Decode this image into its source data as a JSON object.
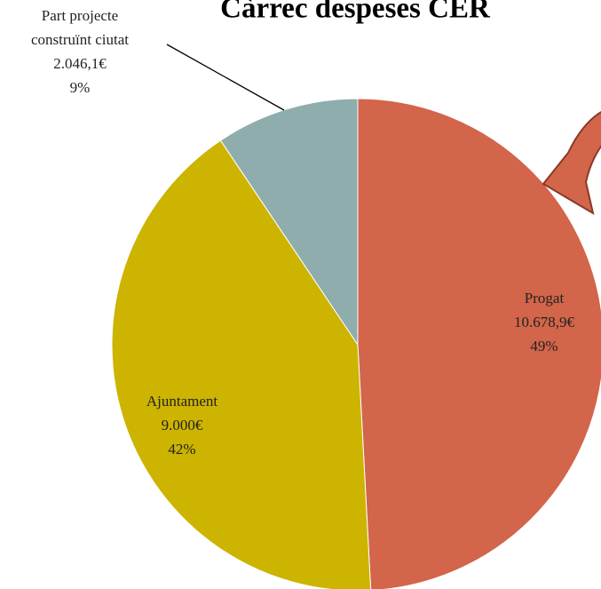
{
  "chart_data": {
    "type": "pie",
    "title": "Càrrec despeses CER",
    "categories": [
      "Progat",
      "Ajuntament",
      "Part projecte construïnt ciutat"
    ],
    "values": [
      10678.9,
      9000,
      2046.1
    ],
    "value_labels": [
      "10.678,9€",
      "9.000€",
      "2.046,1€"
    ],
    "percentages": [
      49,
      42,
      9
    ],
    "percentage_labels": [
      "49%",
      "42%",
      "9%"
    ],
    "colors": [
      "#d2654a",
      "#ccb400",
      "#8fadad"
    ]
  }
}
